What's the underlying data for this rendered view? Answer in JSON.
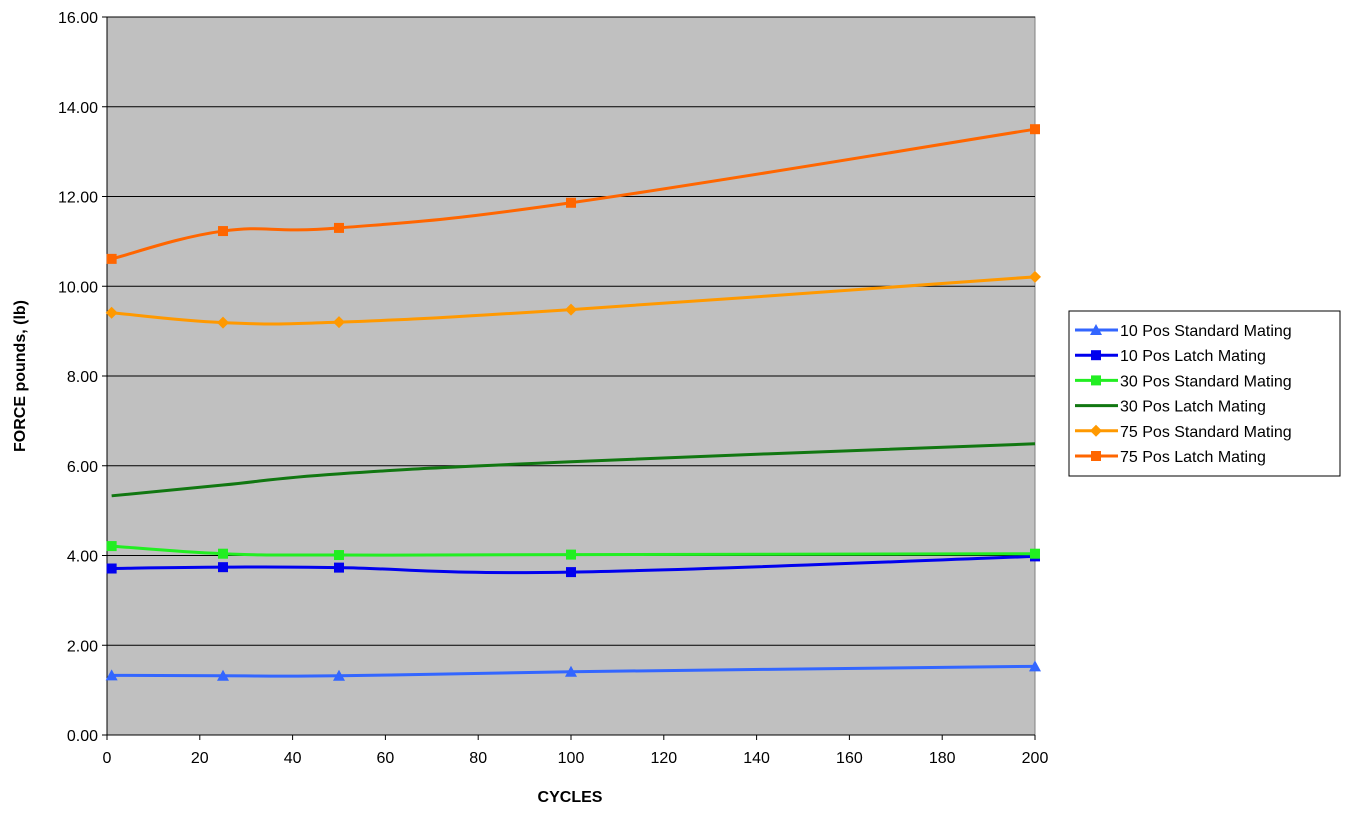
{
  "chart_data": {
    "type": "line",
    "title": "",
    "xlabel": "CYCLES",
    "ylabel": "FORCE pounds, (lb)",
    "xlim": [
      0,
      200
    ],
    "ylim": [
      0,
      16
    ],
    "xticks": [
      0,
      20,
      40,
      60,
      80,
      100,
      120,
      140,
      160,
      180,
      200
    ],
    "yticks": [
      0,
      2,
      4,
      6,
      8,
      10,
      12,
      14,
      16
    ],
    "xtick_labels": [
      "0",
      "20",
      "40",
      "60",
      "80",
      "100",
      "120",
      "140",
      "160",
      "180",
      "200"
    ],
    "ytick_labels": [
      "0.00",
      "2.00",
      "4.00",
      "6.00",
      "8.00",
      "10.00",
      "12.00",
      "14.00",
      "16.00"
    ],
    "grid": true,
    "plot_background": "#c0c0c0",
    "legend_position": "right",
    "x": [
      1,
      25,
      50,
      100,
      200
    ],
    "series": [
      {
        "name": "10 Pos Standard Mating",
        "color": "#3366ff",
        "marker": "triangle",
        "values": [
          1.33,
          1.32,
          1.32,
          1.41,
          1.53
        ]
      },
      {
        "name": "10 Pos Latch Mating",
        "color": "#0000ee",
        "marker": "square",
        "values": [
          3.71,
          3.74,
          3.73,
          3.63,
          3.98
        ]
      },
      {
        "name": "30 Pos Standard Mating",
        "color": "#22ee22",
        "marker": "square",
        "values": [
          4.21,
          4.04,
          4.01,
          4.02,
          4.04
        ]
      },
      {
        "name": "30 Pos Latch Mating",
        "color": "#117711",
        "marker": "none",
        "values": [
          5.33,
          5.57,
          5.82,
          6.09,
          6.49
        ]
      },
      {
        "name": "75 Pos Standard Mating",
        "color": "#ff9900",
        "marker": "diamond",
        "values": [
          9.41,
          9.19,
          9.2,
          9.48,
          10.21
        ]
      },
      {
        "name": "75 Pos Latch Mating",
        "color": "#ff6600",
        "marker": "square",
        "values": [
          10.61,
          11.23,
          11.3,
          11.86,
          13.5
        ]
      }
    ]
  }
}
